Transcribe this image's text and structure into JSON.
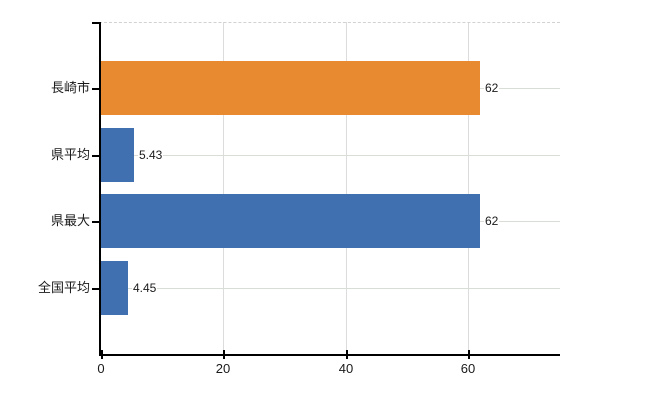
{
  "chart_data": {
    "type": "bar",
    "orientation": "horizontal",
    "title": "",
    "xlabel": "",
    "ylabel": "",
    "categories": [
      "長崎市",
      "県平均",
      "県最大",
      "全国平均"
    ],
    "values": [
      62,
      5.43,
      62,
      4.45
    ],
    "value_labels": [
      "62",
      "5.43",
      "62",
      "4.45"
    ],
    "bar_colors": [
      "#e88a2f",
      "#4170b0",
      "#4170b0",
      "#4170b0"
    ],
    "x_ticks": [
      0,
      20,
      40,
      60
    ],
    "x_tick_labels": [
      "0",
      "20",
      "40",
      "60"
    ],
    "xlim": [
      0,
      75
    ],
    "grid": true,
    "legend": null,
    "colors": {
      "orange_bar": "#e88a2f",
      "blue_bar": "#4170b0",
      "vertical_gridline": "#dcdcdc",
      "horizontal_gridline": "#d8ded6",
      "top_border_dashed": "#d2d2d2",
      "axis": "#000000",
      "text": "#1a1a1a",
      "background": "#ffffff"
    }
  }
}
